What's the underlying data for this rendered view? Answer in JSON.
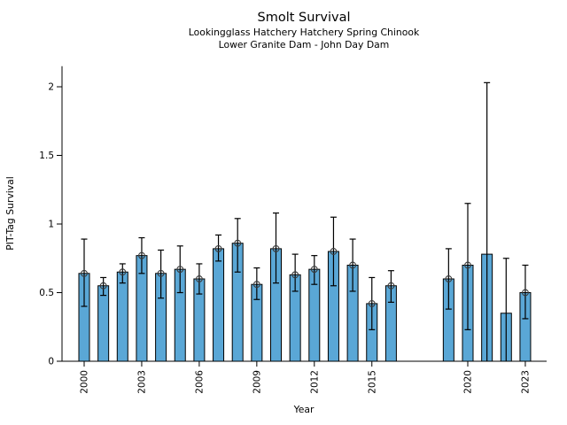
{
  "figure": {
    "title": "Smolt Survival",
    "subtitle_line1": "Lookingglass Hatchery Hatchery Spring Chinook",
    "subtitle_line2": "Lower Granite Dam - John Day Dam"
  },
  "chart_data": {
    "type": "bar",
    "title": "Smolt Survival",
    "subtitle": [
      "Lookingglass Hatchery Hatchery Spring Chinook",
      "Lower Granite Dam - John Day Dam"
    ],
    "xlabel": "Year",
    "ylabel": "PIT-Tag Survival",
    "ylim": [
      0,
      2.15
    ],
    "yticks": [
      0,
      0.5,
      1,
      1.5,
      2
    ],
    "ytick_labels": [
      "0",
      "0.5",
      "1",
      "1.5",
      "2"
    ],
    "xticks": [
      2000,
      2003,
      2006,
      2009,
      2012,
      2015,
      2020,
      2023
    ],
    "x_range": [
      2000,
      2023
    ],
    "grid": false,
    "legend": null,
    "bar_color": "#5AA7D6",
    "bar_edge_color": "#000000",
    "error_bar_color": "#000000",
    "marker_style": "open-circle",
    "series": [
      {
        "year": 2000,
        "value": 0.64,
        "ci_low": 0.4,
        "ci_high": 0.89,
        "marker": true
      },
      {
        "year": 2001,
        "value": 0.55,
        "ci_low": 0.48,
        "ci_high": 0.61,
        "marker": true
      },
      {
        "year": 2002,
        "value": 0.65,
        "ci_low": 0.57,
        "ci_high": 0.71,
        "marker": true
      },
      {
        "year": 2003,
        "value": 0.77,
        "ci_low": 0.64,
        "ci_high": 0.9,
        "marker": true
      },
      {
        "year": 2004,
        "value": 0.64,
        "ci_low": 0.46,
        "ci_high": 0.81,
        "marker": true
      },
      {
        "year": 2005,
        "value": 0.67,
        "ci_low": 0.5,
        "ci_high": 0.84,
        "marker": true
      },
      {
        "year": 2006,
        "value": 0.6,
        "ci_low": 0.49,
        "ci_high": 0.71,
        "marker": true
      },
      {
        "year": 2007,
        "value": 0.82,
        "ci_low": 0.73,
        "ci_high": 0.92,
        "marker": true
      },
      {
        "year": 2008,
        "value": 0.86,
        "ci_low": 0.65,
        "ci_high": 1.04,
        "marker": true
      },
      {
        "year": 2009,
        "value": 0.56,
        "ci_low": 0.45,
        "ci_high": 0.68,
        "marker": true
      },
      {
        "year": 2010,
        "value": 0.82,
        "ci_low": 0.57,
        "ci_high": 1.08,
        "marker": true
      },
      {
        "year": 2011,
        "value": 0.63,
        "ci_low": 0.51,
        "ci_high": 0.78,
        "marker": true
      },
      {
        "year": 2012,
        "value": 0.67,
        "ci_low": 0.56,
        "ci_high": 0.77,
        "marker": true
      },
      {
        "year": 2013,
        "value": 0.8,
        "ci_low": 0.55,
        "ci_high": 1.05,
        "marker": true
      },
      {
        "year": 2014,
        "value": 0.7,
        "ci_low": 0.51,
        "ci_high": 0.89,
        "marker": true
      },
      {
        "year": 2015,
        "value": 0.42,
        "ci_low": 0.23,
        "ci_high": 0.61,
        "marker": true
      },
      {
        "year": 2016,
        "value": 0.55,
        "ci_low": 0.43,
        "ci_high": 0.66,
        "marker": true
      },
      {
        "year": 2019,
        "value": 0.6,
        "ci_low": 0.38,
        "ci_high": 0.82,
        "marker": true
      },
      {
        "year": 2020,
        "value": 0.7,
        "ci_low": 0.23,
        "ci_high": 1.15,
        "marker": true
      },
      {
        "year": 2021,
        "value": 0.78,
        "ci_low": 0.0,
        "ci_high": 2.03,
        "marker": false
      },
      {
        "year": 2022,
        "value": 0.35,
        "ci_low": 0.0,
        "ci_high": 0.75,
        "marker": false
      },
      {
        "year": 2023,
        "value": 0.5,
        "ci_low": 0.31,
        "ci_high": 0.7,
        "marker": true
      }
    ]
  }
}
